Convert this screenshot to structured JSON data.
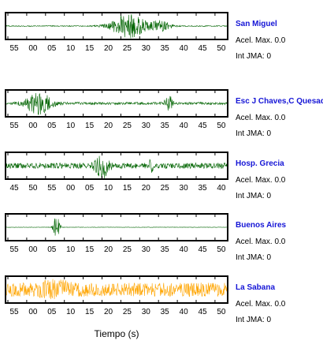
{
  "chart_data": {
    "type": "line",
    "xlabel": "Tiempo (s)",
    "pga_label": "Acel. Max.",
    "jma_label": "Int JMA:",
    "panels": [
      {
        "station": "San Miguel",
        "pga": "0.0",
        "jma": "0",
        "color": "#006400",
        "tick_labels": [
          "55",
          "00",
          "05",
          "10",
          "15",
          "20",
          "25",
          "30",
          "35",
          "40",
          "45",
          "50"
        ],
        "bursts": [
          {
            "at": 0.555,
            "width": 0.08,
            "amp": 0.95
          },
          {
            "at": 0.7,
            "width": 0.045,
            "amp": 0.4
          }
        ],
        "noise": 0.04
      },
      {
        "station": "Esc J Chaves,C Quesada",
        "pga": "0.0",
        "jma": "0",
        "color": "#006400",
        "tick_labels": [
          "55",
          "00",
          "05",
          "10",
          "15",
          "20",
          "25",
          "30",
          "35",
          "40",
          "45",
          "50"
        ],
        "bursts": [
          {
            "at": 0.15,
            "width": 0.055,
            "amp": 0.95
          },
          {
            "at": 0.735,
            "width": 0.02,
            "amp": 0.55
          }
        ],
        "noise": 0.1
      },
      {
        "station": "Hosp. Grecia",
        "pga": "0.0",
        "jma": "0",
        "color": "#006400",
        "tick_labels": [
          "45",
          "50",
          "55",
          "00",
          "05",
          "10",
          "15",
          "20",
          "25",
          "30",
          "35",
          "40"
        ],
        "bursts": [
          {
            "at": 0.435,
            "width": 0.03,
            "amp": 0.95
          },
          {
            "at": 0.655,
            "width": 0.006,
            "amp": 0.95
          }
        ],
        "noise": 0.22
      },
      {
        "station": "Buenos Aires",
        "pga": "0.0",
        "jma": "0",
        "color": "#006400",
        "tick_labels": [
          "55",
          "00",
          "05",
          "10",
          "15",
          "20",
          "25",
          "30",
          "35",
          "40",
          "45",
          "50"
        ],
        "bursts": [
          {
            "at": 0.23,
            "width": 0.015,
            "amp": 0.95
          }
        ],
        "noise": 0.015
      },
      {
        "station": "La Sabana",
        "pga": "0.0",
        "jma": "0",
        "color": "#ffa500",
        "tick_labels": [
          "55",
          "00",
          "05",
          "10",
          "15",
          "20",
          "25",
          "30",
          "35",
          "40",
          "45",
          "50"
        ],
        "bursts": [
          {
            "at": 0.225,
            "width": 0.06,
            "amp": 0.35
          }
        ],
        "noise": 0.55
      }
    ]
  }
}
